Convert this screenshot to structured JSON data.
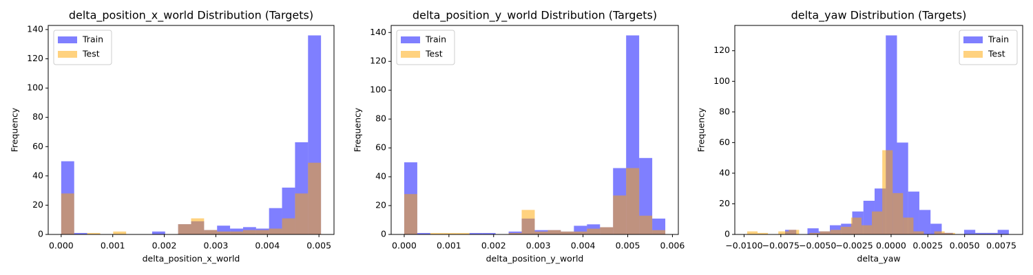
{
  "chart_data": [
    {
      "type": "histogram",
      "title": "delta_position_x_world Distribution (Targets)",
      "xlabel": "delta_position_x_world",
      "ylabel": "Frequency",
      "bins": [
        0,
        0.000252,
        0.000504,
        0.000756,
        0.001008,
        0.00126,
        0.001512,
        0.001764,
        0.002016,
        0.002268,
        0.00252,
        0.002772,
        0.003024,
        0.003276,
        0.003528,
        0.00378,
        0.004032,
        0.004284,
        0.004536,
        0.004788,
        0.00504
      ],
      "series": [
        {
          "name": "Train",
          "color": "#0000ff",
          "values": [
            50,
            1,
            0,
            0,
            0,
            0,
            0,
            2,
            0,
            7,
            9,
            3,
            6,
            4,
            5,
            4,
            18,
            32,
            63,
            136
          ]
        },
        {
          "name": "Test",
          "color": "#ffa500",
          "values": [
            28,
            0,
            1,
            0,
            2,
            0,
            0,
            0,
            0,
            7,
            11,
            3,
            2,
            2,
            3,
            3,
            4,
            11,
            28,
            49
          ]
        }
      ],
      "alpha": 0.5,
      "legend": "upper left",
      "xlim": [
        -0.000252,
        0.005292
      ],
      "ylim": [
        0,
        142.8
      ],
      "xticks": [
        {
          "value": 0,
          "label": "0.000"
        },
        {
          "value": 0.001,
          "label": "0.001"
        },
        {
          "value": 0.002,
          "label": "0.002"
        },
        {
          "value": 0.003,
          "label": "0.003"
        },
        {
          "value": 0.004,
          "label": "0.004"
        },
        {
          "value": 0.005,
          "label": "0.005"
        }
      ],
      "yticks": [
        0,
        20,
        40,
        60,
        80,
        100,
        120,
        140
      ]
    },
    {
      "type": "histogram",
      "title": "delta_position_y_world Distribution (Targets)",
      "xlabel": "delta_position_y_world",
      "ylabel": "Frequency",
      "bins": [
        0,
        0.000292,
        0.000584,
        0.000876,
        0.001168,
        0.00146,
        0.001752,
        0.002044,
        0.002336,
        0.002628,
        0.00292,
        0.003212,
        0.003504,
        0.003796,
        0.004088,
        0.00438,
        0.004672,
        0.004964,
        0.005256,
        0.005548,
        0.00584
      ],
      "series": [
        {
          "name": "Train",
          "color": "#0000ff",
          "values": [
            50,
            1,
            0,
            0,
            0,
            1,
            1,
            0,
            2,
            11,
            3,
            3,
            2,
            6,
            7,
            5,
            46,
            138,
            53,
            11
          ]
        },
        {
          "name": "Test",
          "color": "#ffa500",
          "values": [
            28,
            0,
            1,
            1,
            1,
            0,
            0,
            0,
            1,
            17,
            2,
            3,
            2,
            2,
            4,
            5,
            27,
            46,
            13,
            3
          ]
        }
      ],
      "alpha": 0.5,
      "legend": "upper left",
      "xlim": [
        -0.000292,
        0.006132
      ],
      "ylim": [
        0,
        144.9
      ],
      "xticks": [
        {
          "value": 0,
          "label": "0.000"
        },
        {
          "value": 0.001,
          "label": "0.001"
        },
        {
          "value": 0.002,
          "label": "0.002"
        },
        {
          "value": 0.003,
          "label": "0.003"
        },
        {
          "value": 0.004,
          "label": "0.004"
        },
        {
          "value": 0.005,
          "label": "0.005"
        },
        {
          "value": 0.006,
          "label": "0.006"
        }
      ],
      "yticks": [
        0,
        20,
        40,
        60,
        80,
        100,
        120,
        140
      ]
    },
    {
      "type": "histogram",
      "title": "delta_yaw Distribution (Targets)",
      "xlabel": "delta_yaw",
      "ylabel": "Frequency",
      "series": [
        {
          "name": "Train",
          "color": "#0000ff",
          "bins": [
            -0.00721,
            -0.006449,
            -0.005688,
            -0.004927,
            -0.004166,
            -0.003405,
            -0.002644,
            -0.001883,
            -0.001122,
            -0.000361,
            0.0004,
            0.001161,
            0.001922,
            0.002683,
            0.003444,
            0.004205,
            0.004966,
            0.005727,
            0.006488,
            0.007249,
            0.00801
          ],
          "values": [
            3,
            0,
            4,
            2,
            6,
            7,
            15,
            22,
            30,
            130,
            60,
            28,
            16,
            7,
            1,
            0,
            3,
            1,
            1,
            3
          ]
        },
        {
          "name": "Test",
          "color": "#ffa500",
          "bins": [
            -0.00979,
            -0.009083,
            -0.008376,
            -0.007669,
            -0.006962,
            -0.006255,
            -0.005548,
            -0.004841,
            -0.004134,
            -0.003427,
            -0.00272,
            -0.002013,
            -0.001306,
            -0.000599,
            0.000108,
            0.000815,
            0.001522,
            0.002229,
            0.002936,
            0.003643,
            0.00435
          ],
          "values": [
            2,
            1,
            0,
            2,
            3,
            0,
            1,
            2,
            3,
            5,
            11,
            6,
            15,
            55,
            27,
            11,
            2,
            0,
            2,
            1
          ]
        }
      ],
      "alpha": 0.5,
      "legend": "upper right",
      "xlim": [
        -0.01063,
        0.00895
      ],
      "ylim": [
        0,
        136.5
      ],
      "xticks": [
        {
          "value": -0.01,
          "label": "−0.0100"
        },
        {
          "value": -0.0075,
          "label": "−0.0075"
        },
        {
          "value": -0.005,
          "label": "−0.0050"
        },
        {
          "value": -0.0025,
          "label": "−0.0025"
        },
        {
          "value": 0,
          "label": "0.0000"
        },
        {
          "value": 0.0025,
          "label": "0.0025"
        },
        {
          "value": 0.005,
          "label": "0.0050"
        },
        {
          "value": 0.0075,
          "label": "0.0075"
        }
      ],
      "yticks": [
        0,
        20,
        40,
        60,
        80,
        100,
        120
      ]
    }
  ]
}
